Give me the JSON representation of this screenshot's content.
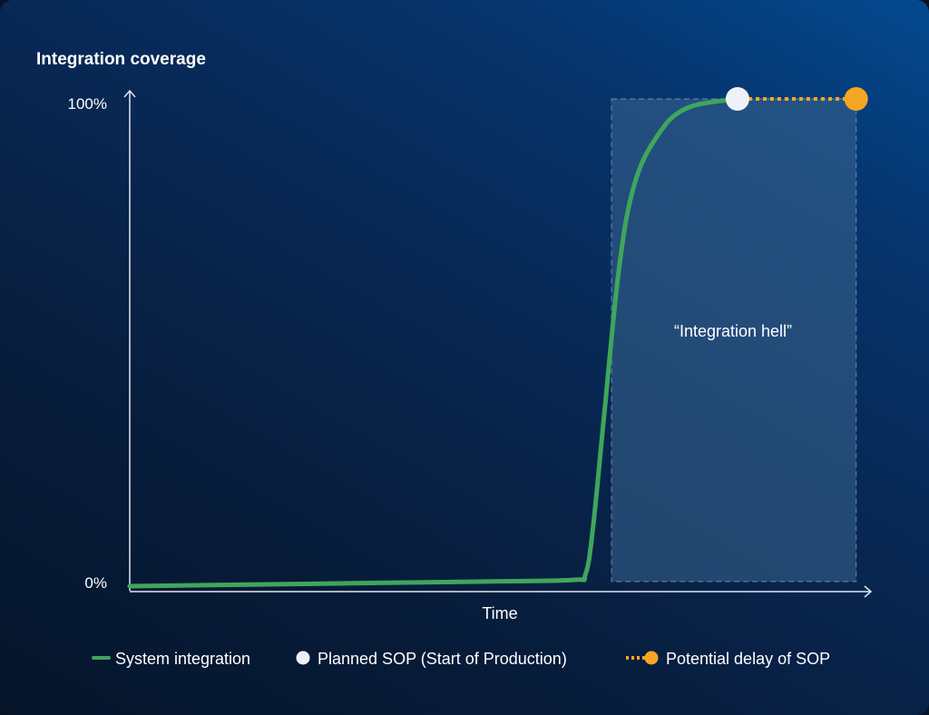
{
  "chart_data": {
    "type": "line",
    "ylabel": "Integration coverage",
    "xlabel": "Time",
    "y_ticks": [
      "100%",
      "0%"
    ],
    "ylim": [
      0,
      100
    ],
    "annotation": "“Integration hell”",
    "series": [
      {
        "name": "System integration",
        "color": "#3fa65c",
        "points": [
          {
            "x": 0,
            "y": 0
          },
          {
            "x": 10,
            "y": 0.2
          },
          {
            "x": 20,
            "y": 0.4
          },
          {
            "x": 30,
            "y": 0.6
          },
          {
            "x": 40,
            "y": 0.8
          },
          {
            "x": 50,
            "y": 1
          },
          {
            "x": 60,
            "y": 1.3
          },
          {
            "x": 61.5,
            "y": 2.5
          },
          {
            "x": 62.5,
            "y": 12
          },
          {
            "x": 64,
            "y": 35
          },
          {
            "x": 66,
            "y": 65
          },
          {
            "x": 68,
            "y": 82
          },
          {
            "x": 71,
            "y": 92
          },
          {
            "x": 75,
            "y": 98
          },
          {
            "x": 82,
            "y": 100
          }
        ]
      },
      {
        "name": "Planned SOP (Start of Production)",
        "color": "#eef2f7",
        "points": [
          {
            "x": 82,
            "y": 100
          }
        ]
      },
      {
        "name": "Potential delay of SOP",
        "color": "#f5a623",
        "points": [
          {
            "x": 82,
            "y": 100
          },
          {
            "x": 98,
            "y": 100
          }
        ]
      }
    ],
    "highlight_region": {
      "x_start": 65,
      "x_end": 98,
      "y_start": 0,
      "y_end": 100
    },
    "legend": {
      "position": "bottom"
    }
  }
}
